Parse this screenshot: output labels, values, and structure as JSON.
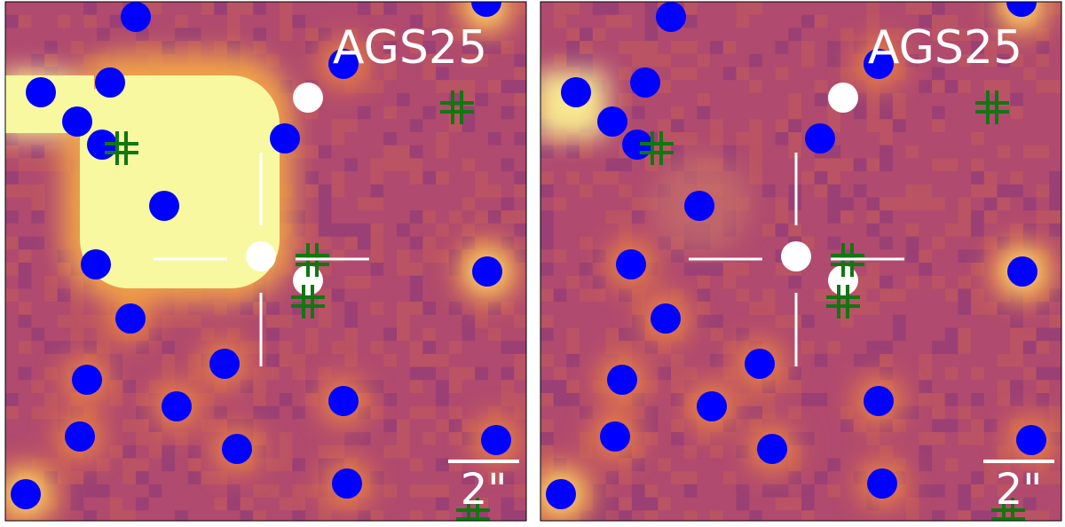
{
  "panels": [
    {
      "label": "AGS25",
      "scale_bar": "2\""
    },
    {
      "label": "AGS25",
      "scale_bar": "2\""
    }
  ]
}
